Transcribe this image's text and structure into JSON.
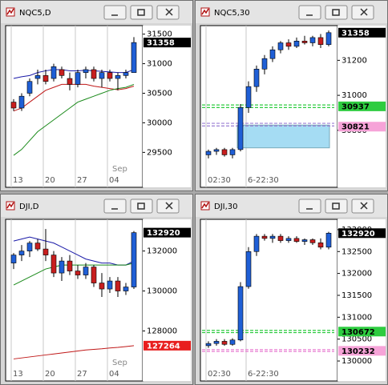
{
  "chart_data": [
    {
      "type": "candlestick",
      "title": "NQC5,D",
      "categories": [
        "13",
        null,
        null,
        null,
        "20",
        null,
        null,
        null,
        "27",
        null,
        null,
        null,
        "04",
        null,
        null,
        null
      ],
      "x_annotation": "Sep",
      "open": [
        30350,
        30250,
        30500,
        30750,
        30800,
        30750,
        30900,
        30750,
        30650,
        30850,
        30900,
        30750,
        30850,
        30750,
        30800,
        30850
      ],
      "high": [
        30400,
        30500,
        30750,
        30900,
        30900,
        31000,
        30950,
        30850,
        30900,
        30950,
        30950,
        30900,
        30900,
        30850,
        30900,
        31450
      ],
      "low": [
        30200,
        30200,
        30450,
        30650,
        30650,
        30700,
        30750,
        30550,
        30600,
        30750,
        30700,
        30600,
        30700,
        30550,
        30750,
        30850
      ],
      "close": [
        30250,
        30450,
        30700,
        30800,
        30700,
        30950,
        30800,
        30650,
        30850,
        30900,
        30750,
        30850,
        30750,
        30800,
        30850,
        31358
      ],
      "series": [
        {
          "color": "#1a1aa8",
          "values": [
            30750,
            30780,
            30800,
            30850,
            30880,
            30900,
            30900,
            30880,
            30880,
            30890,
            30880,
            30870,
            30860,
            30850,
            30850,
            30900
          ]
        },
        {
          "color": "#c01818",
          "values": [
            30200,
            30250,
            30350,
            30450,
            30550,
            30600,
            30650,
            30650,
            30650,
            30650,
            30620,
            30600,
            30580,
            30560,
            30580,
            30620
          ]
        },
        {
          "color": "#1a8a1a",
          "values": [
            29450,
            29550,
            29700,
            29850,
            29950,
            30050,
            30150,
            30250,
            30350,
            30400,
            30450,
            30500,
            30550,
            30580,
            30600,
            30650
          ]
        }
      ],
      "ylim": [
        29180,
        31590
      ],
      "yticks": [
        31500,
        31000,
        30500,
        30000,
        29500
      ],
      "price_tags": [
        {
          "value": 31358,
          "color": "#000000",
          "text_color": "#ffffff"
        }
      ],
      "up_color": "#1f5fd6",
      "down_color": "#c81e1e"
    },
    {
      "type": "candlestick",
      "title": "NQC5,30",
      "categories": [
        "02:30",
        null,
        null,
        null,
        null,
        "6-22:30",
        null,
        null,
        null,
        null,
        null,
        null,
        null,
        null,
        null,
        null
      ],
      "open": [
        30660,
        30680,
        30690,
        30660,
        30690,
        30930,
        31050,
        31150,
        31210,
        31260,
        31300,
        31280,
        31310,
        31300,
        31330,
        31290
      ],
      "high": [
        30690,
        30700,
        30700,
        30700,
        30950,
        31080,
        31170,
        31230,
        31280,
        31310,
        31320,
        31330,
        31340,
        31340,
        31350,
        31370
      ],
      "low": [
        30640,
        30660,
        30650,
        30640,
        30680,
        30900,
        31020,
        31120,
        31190,
        31240,
        31260,
        31270,
        31290,
        31280,
        31270,
        31280
      ],
      "close": [
        30680,
        30690,
        30660,
        30690,
        30930,
        31050,
        31150,
        31210,
        31260,
        31300,
        31280,
        31310,
        31300,
        31330,
        31290,
        31358
      ],
      "ylim": [
        30566,
        31380
      ],
      "yticks": [
        31200,
        31000,
        30800
      ],
      "levels": [
        {
          "value": 30945,
          "color": "#2ecc40"
        },
        {
          "value": 30930,
          "color": "#2ecc40"
        },
        {
          "value": 30840,
          "color": "#9b7fd4"
        },
        {
          "value": 30825,
          "color": "#9b7fd4"
        }
      ],
      "zone": {
        "from": 30700,
        "to": 30830,
        "color": "#8fd3f0"
      },
      "price_tags": [
        {
          "value": 31358,
          "color": "#000000",
          "text_color": "#ffffff"
        },
        {
          "value": 30937,
          "color": "#2ecc40",
          "text_color": "#000000"
        },
        {
          "value": 30821,
          "color": "#f6a3d8",
          "text_color": "#000000"
        }
      ],
      "up_color": "#1f5fd6",
      "down_color": "#c81e1e"
    },
    {
      "type": "candlestick",
      "title": "DJI,D",
      "categories": [
        "13",
        null,
        null,
        null,
        "20",
        null,
        null,
        null,
        "27",
        null,
        null,
        null,
        "04",
        null,
        null,
        null
      ],
      "x_annotation": "Sep",
      "open": [
        131400,
        131800,
        132000,
        132400,
        132100,
        131800,
        130900,
        131500,
        131000,
        130800,
        131200,
        130400,
        130100,
        130500,
        130000,
        130200
      ],
      "high": [
        131900,
        132300,
        132500,
        132600,
        133100,
        132000,
        131700,
        131800,
        131300,
        131400,
        131300,
        130900,
        130700,
        130700,
        130400,
        133000
      ],
      "low": [
        131100,
        131500,
        131700,
        132000,
        131500,
        130700,
        130500,
        130800,
        130600,
        130600,
        130200,
        129700,
        129900,
        129700,
        129800,
        130100
      ],
      "close": [
        131800,
        132000,
        132400,
        132100,
        131800,
        130900,
        131500,
        131000,
        130800,
        131200,
        130400,
        130100,
        130500,
        130000,
        130200,
        132920
      ],
      "series": [
        {
          "color": "#1a1aa8",
          "values": [
            132500,
            132600,
            132700,
            132600,
            132500,
            132400,
            132200,
            132000,
            131800,
            131600,
            131500,
            131400,
            131400,
            131300,
            131300,
            131500
          ]
        },
        {
          "color": "#1a8a1a",
          "values": [
            130300,
            130500,
            130700,
            130900,
            131100,
            131200,
            131300,
            131300,
            131300,
            131300,
            131300,
            131300,
            131300,
            131300,
            131300,
            131400
          ]
        },
        {
          "color": "#c01818",
          "values": [
            126600,
            126650,
            126700,
            126750,
            126800,
            126850,
            126900,
            126950,
            127000,
            127050,
            127080,
            127110,
            127150,
            127180,
            127220,
            127264
          ]
        }
      ],
      "ylim": [
        126297,
        133426
      ],
      "yticks": [
        132000,
        130000,
        128000
      ],
      "price_tags": [
        {
          "value": 132920,
          "color": "#000000",
          "text_color": "#ffffff"
        },
        {
          "value": 127264,
          "color": "#e81e1e",
          "text_color": "#ffffff"
        }
      ],
      "up_color": "#1f5fd6",
      "down_color": "#c81e1e"
    },
    {
      "type": "candlestick",
      "title": "DJI,30",
      "categories": [
        "02:30",
        null,
        null,
        null,
        null,
        "6-22:30",
        null,
        null,
        null,
        null,
        null,
        null,
        null,
        null,
        null,
        null
      ],
      "open": [
        130350,
        130400,
        130450,
        130380,
        130480,
        131700,
        132500,
        132850,
        132800,
        132850,
        132750,
        132800,
        132730,
        132770,
        132700,
        132600
      ],
      "high": [
        130450,
        130500,
        130500,
        130520,
        131800,
        132600,
        132900,
        132900,
        132900,
        132900,
        132850,
        132850,
        132800,
        132800,
        132800,
        132950
      ],
      "low": [
        130300,
        130350,
        130350,
        130350,
        130450,
        131650,
        132400,
        132750,
        132700,
        132700,
        132700,
        132700,
        132650,
        132650,
        132550,
        132550
      ],
      "close": [
        130400,
        130450,
        130380,
        130480,
        131700,
        132500,
        132850,
        132800,
        132850,
        132750,
        132800,
        132730,
        132770,
        132700,
        132600,
        132920
      ],
      "ylim": [
        129909,
        133163
      ],
      "yticks": [
        133000,
        132500,
        132000,
        131500,
        131000,
        130500,
        130000
      ],
      "levels": [
        {
          "value": 130700,
          "color": "#2ecc40"
        },
        {
          "value": 130650,
          "color": "#2ecc40"
        },
        {
          "value": 130260,
          "color": "#e87ad0"
        },
        {
          "value": 130220,
          "color": "#e87ad0"
        }
      ],
      "price_tags": [
        {
          "value": 132920,
          "color": "#000000",
          "text_color": "#ffffff"
        },
        {
          "value": 130672,
          "color": "#2ecc40",
          "text_color": "#000000"
        },
        {
          "value": 130232,
          "color": "#f6a3d8",
          "text_color": "#000000"
        }
      ],
      "up_color": "#1f5fd6",
      "down_color": "#c81e1e"
    }
  ]
}
